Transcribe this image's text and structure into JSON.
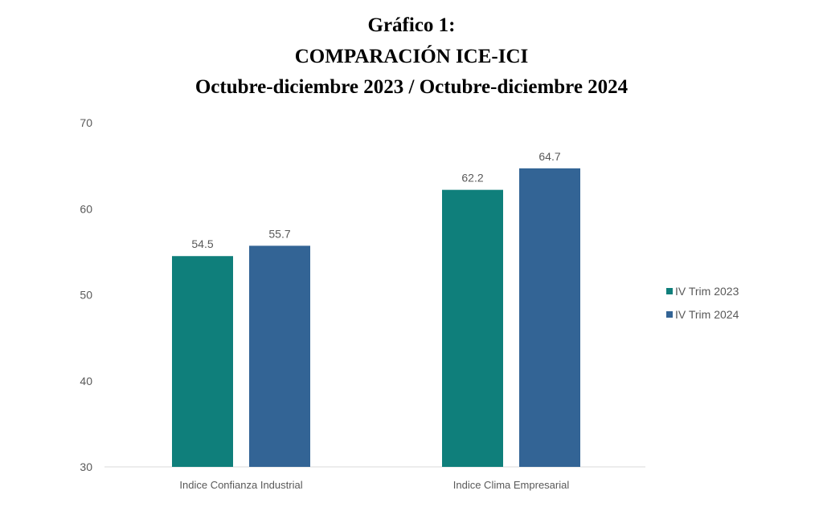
{
  "chart_data": {
    "type": "bar",
    "title_lines": [
      "Gráfico 1:",
      "COMPARACIÓN ICE-ICI",
      "Octubre-diciembre 2023 / Octubre-diciembre 2024"
    ],
    "categories": [
      "Indice Confianza Industrial",
      "Indice Clima Empresarial"
    ],
    "series": [
      {
        "name": "IV Trim 2023",
        "values": [
          54.5,
          62.2
        ],
        "labels": [
          "54.5",
          "62.2"
        ],
        "color": "#0F7F7B"
      },
      {
        "name": "IV Trim 2024",
        "values": [
          55.7,
          64.7
        ],
        "labels": [
          "55.7",
          "64.7"
        ],
        "color": "#336495"
      }
    ],
    "ylim": [
      30,
      70
    ],
    "yticks": [
      "30",
      "40",
      "50",
      "60",
      "70"
    ],
    "xlabel": "",
    "ylabel": "",
    "grid": false,
    "legend": "right"
  }
}
